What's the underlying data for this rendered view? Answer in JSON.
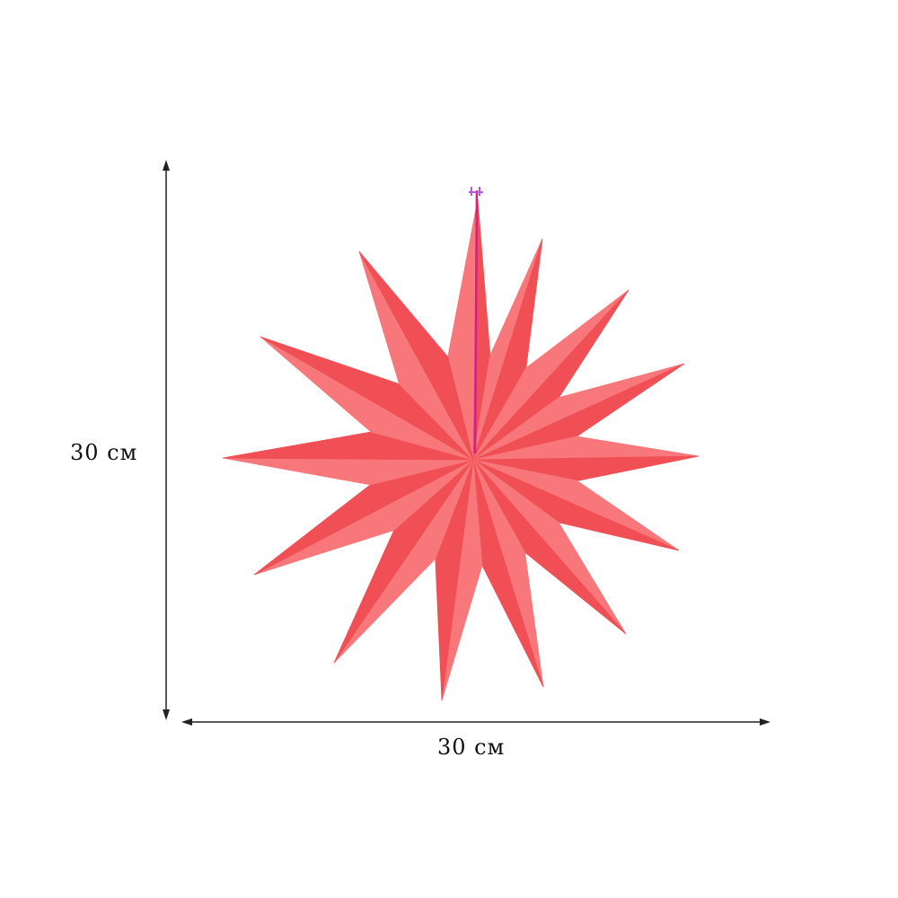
{
  "dimensions": {
    "height_label": "30 см",
    "width_label": "30 см"
  },
  "product": {
    "name_icon": "paper-star-14-point",
    "point_count": 14,
    "colors": {
      "star_dark": "#ef4f55",
      "star_light": "#f7777a",
      "hanging_string": "#d0208a",
      "arrow": "#222222"
    }
  }
}
